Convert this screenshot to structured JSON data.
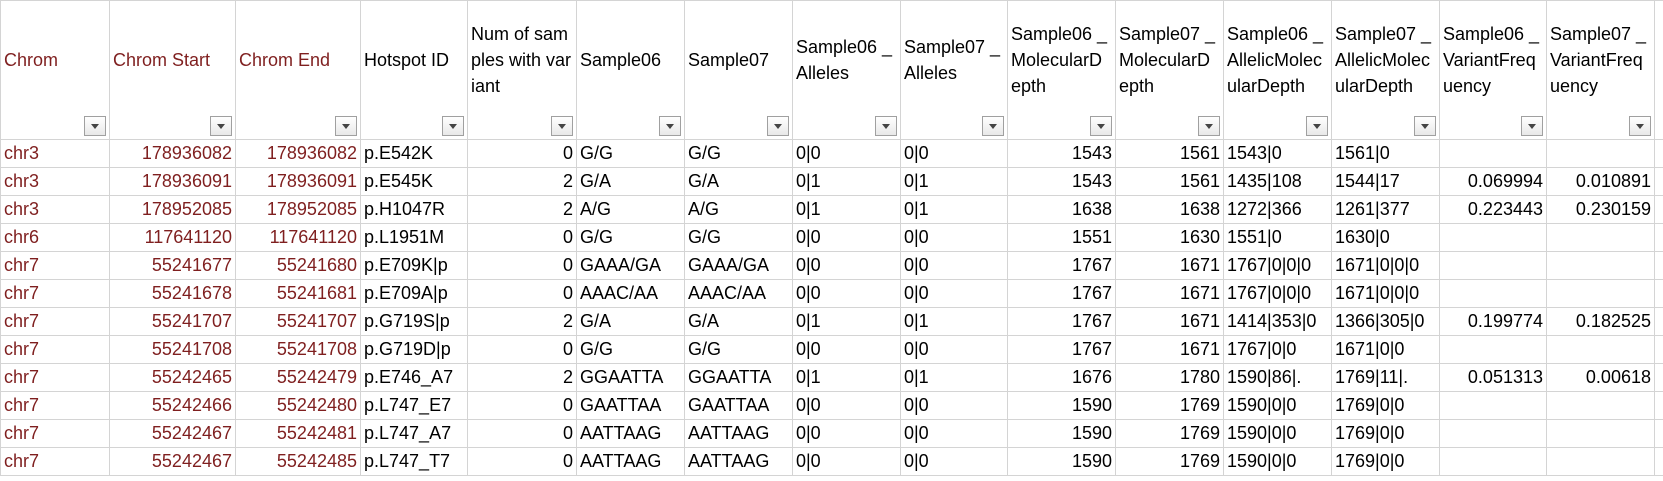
{
  "header": [
    "Chrom",
    "Chrom Start",
    "Chrom End",
    "Hotspot ID",
    "Num of samples with variant",
    "Sample06",
    "Sample07",
    "Sample06 _Alleles",
    "Sample07 _Alleles",
    "Sample06 _MolecularDepth",
    "Sample07 _MolecularDepth",
    "Sample06 _AllelicMolecularDepth",
    "Sample07 _AllelicMolecularDepth",
    "Sample06 _VariantFrequency",
    "Sample07 _VariantFrequency"
  ],
  "rows": [
    [
      "chr3",
      178936082,
      178936082,
      "p.E542K",
      0,
      "G/G",
      "G/G",
      "0|0",
      "0|0",
      1543,
      1561,
      "1543|0",
      "1561|0",
      null,
      null
    ],
    [
      "chr3",
      178936091,
      178936091,
      "p.E545K",
      2,
      "G/A",
      "G/A",
      "0|1",
      "0|1",
      1543,
      1561,
      "1435|108",
      "1544|17",
      0.069994,
      0.010891
    ],
    [
      "chr3",
      178952085,
      178952085,
      "p.H1047R",
      2,
      "A/G",
      "A/G",
      "0|1",
      "0|1",
      1638,
      1638,
      "1272|366",
      "1261|377",
      0.223443,
      0.230159
    ],
    [
      "chr6",
      117641120,
      117641120,
      "p.L1951M",
      0,
      "G/G",
      "G/G",
      "0|0",
      "0|0",
      1551,
      1630,
      "1551|0",
      "1630|0",
      null,
      null
    ],
    [
      "chr7",
      55241677,
      55241680,
      "p.E709K|p",
      0,
      "GAAA/GA",
      "GAAA/GA",
      "0|0",
      "0|0",
      1767,
      1671,
      "1767|0|0|0",
      "1671|0|0|0",
      null,
      null
    ],
    [
      "chr7",
      55241678,
      55241681,
      "p.E709A|p",
      0,
      "AAAC/AA",
      "AAAC/AA",
      "0|0",
      "0|0",
      1767,
      1671,
      "1767|0|0|0",
      "1671|0|0|0",
      null,
      null
    ],
    [
      "chr7",
      55241707,
      55241707,
      "p.G719S|p",
      2,
      "G/A",
      "G/A",
      "0|1",
      "0|1",
      1767,
      1671,
      "1414|353|0",
      "1366|305|0",
      0.199774,
      0.182525
    ],
    [
      "chr7",
      55241708,
      55241708,
      "p.G719D|p",
      0,
      "G/G",
      "G/G",
      "0|0",
      "0|0",
      1767,
      1671,
      "1767|0|0",
      "1671|0|0",
      null,
      null
    ],
    [
      "chr7",
      55242465,
      55242479,
      "p.E746_A7",
      2,
      "GGAATTA",
      "GGAATTA",
      "0|1",
      "0|1",
      1676,
      1780,
      "1590|86|.",
      "1769|11|.",
      0.051313,
      0.00618
    ],
    [
      "chr7",
      55242466,
      55242480,
      "p.L747_E7",
      0,
      "GAATTAA",
      "GAATTAA",
      "0|0",
      "0|0",
      1590,
      1769,
      "1590|0|0",
      "1769|0|0",
      null,
      null
    ],
    [
      "chr7",
      55242467,
      55242481,
      "p.L747_A7",
      0,
      "AATTAAG",
      "AATTAAG",
      "0|0",
      "0|0",
      1590,
      1769,
      "1590|0|0",
      "1769|0|0",
      null,
      null
    ],
    [
      "chr7",
      55242467,
      55242485,
      "p.L747_T7",
      0,
      "AATTAAG",
      "AATTAAG",
      "0|0",
      "0|0",
      1590,
      1769,
      "1590|0|0",
      "1769|0|0",
      null,
      null
    ]
  ]
}
